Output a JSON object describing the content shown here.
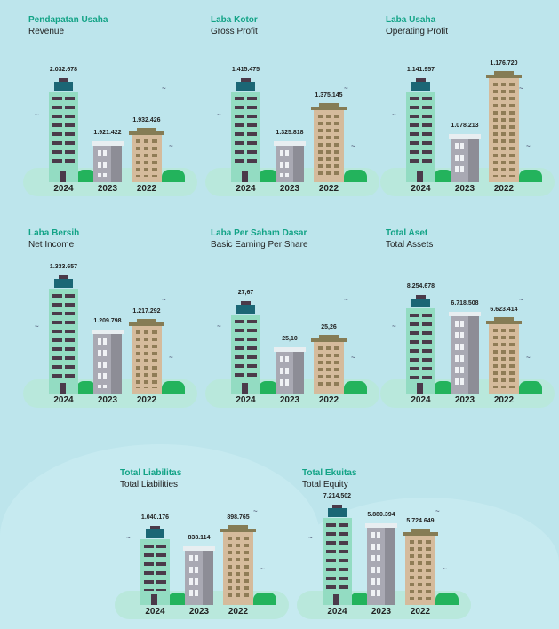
{
  "colors": {
    "title_id": "#12a386",
    "background": "#bde5ec",
    "y2024": "#93dcc2",
    "y2023": "#a9a9b3",
    "y2022": "#d5bb9c"
  },
  "chart_data": [
    {
      "type": "bar",
      "title": "Pendapatan Usaha",
      "subtitle": "Revenue",
      "categories": [
        "2024",
        "2023",
        "2022"
      ],
      "labels": [
        "2.032.678",
        "1.921.422",
        "1.932.426"
      ],
      "values": [
        2032678,
        1921422,
        1932426
      ]
    },
    {
      "type": "bar",
      "title": "Laba Kotor",
      "subtitle": "Gross Profit",
      "categories": [
        "2024",
        "2023",
        "2022"
      ],
      "labels": [
        "1.415.475",
        "1.325.818",
        "1.375.145"
      ],
      "values": [
        1415475,
        1325818,
        1375145
      ]
    },
    {
      "type": "bar",
      "title": "Laba Usaha",
      "subtitle": "Operating Profit",
      "categories": [
        "2024",
        "2023",
        "2022"
      ],
      "labels": [
        "1.141.957",
        "1.078.213",
        "1.176.720"
      ],
      "values": [
        1141957,
        1078213,
        1176720
      ]
    },
    {
      "type": "bar",
      "title": "Laba Bersih",
      "subtitle": "Net Income",
      "categories": [
        "2024",
        "2023",
        "2022"
      ],
      "labels": [
        "1.333.657",
        "1.209.798",
        "1.217.292"
      ],
      "values": [
        1333657,
        1209798,
        1217292
      ]
    },
    {
      "type": "bar",
      "title": "Laba Per Saham Dasar",
      "subtitle": "Basic Earning Per Share",
      "categories": [
        "2024",
        "2023",
        "2022"
      ],
      "labels": [
        "27,67",
        "25,10",
        "25,26"
      ],
      "values": [
        27.67,
        25.1,
        25.26
      ]
    },
    {
      "type": "bar",
      "title": "Total Aset",
      "subtitle": "Total Assets",
      "categories": [
        "2024",
        "2023",
        "2022"
      ],
      "labels": [
        "8.254.678",
        "6.718.508",
        "6.623.414"
      ],
      "values": [
        8254678,
        6718508,
        6623414
      ]
    },
    {
      "type": "bar",
      "title": "Total Liabilitas",
      "subtitle": "Total Liabilities",
      "categories": [
        "2024",
        "2023",
        "2022"
      ],
      "labels": [
        "1.040.176",
        "838.114",
        "898.765"
      ],
      "values": [
        1040176,
        838114,
        898765
      ]
    },
    {
      "type": "bar",
      "title": "Total Ekuitas",
      "subtitle": "Total Equity",
      "categories": [
        "2024",
        "2023",
        "2022"
      ],
      "labels": [
        "7.214.502",
        "5.880.394",
        "5.724.649"
      ],
      "values": [
        7214502,
        5880394,
        5724649
      ]
    }
  ]
}
